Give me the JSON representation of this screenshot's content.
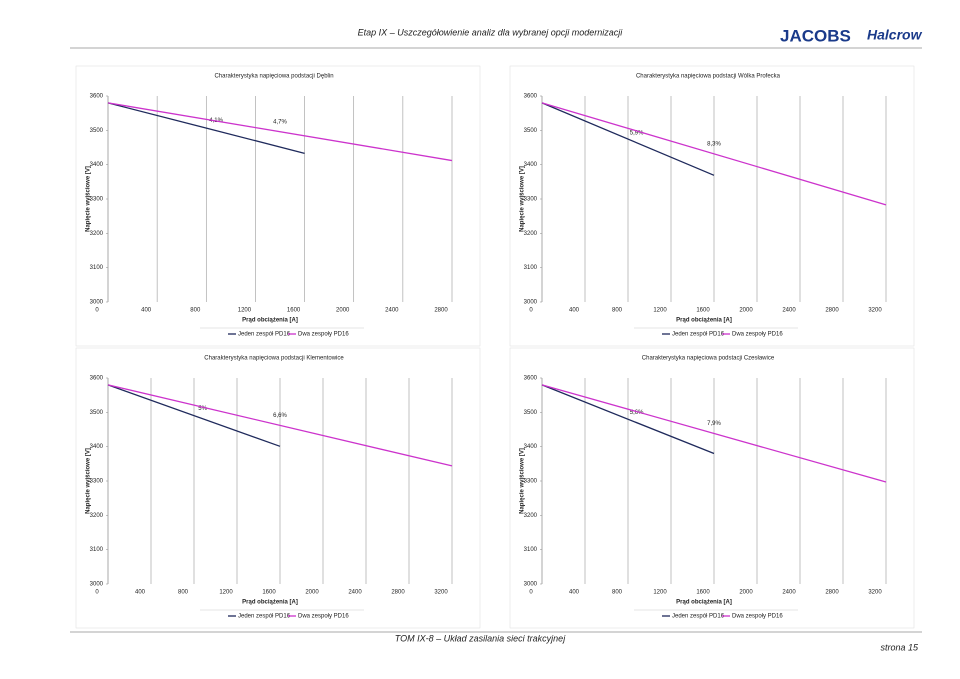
{
  "header": {
    "title": "Etap IX – Uszczegółowienie analiz dla wybranej opcji modernizacji",
    "logo_1": "JACOBS",
    "logo_2": "Halcrow"
  },
  "footer": {
    "text": "TOM IX-8 – Układ zasilania sieci trakcyjnej",
    "page": "strona 15"
  },
  "chart_data": [
    {
      "type": "line",
      "title": "Charakterystyka napięciowa podstacji Dęblin",
      "x_label": "Prąd obciążenia [A]",
      "y_label": "Napięcie wyjściowe [V]",
      "xlim": [
        0,
        2800
      ],
      "xticks": [
        0,
        400,
        800,
        1200,
        1600,
        2000,
        2400,
        2800
      ],
      "ylim": [
        3000,
        3600
      ],
      "yticks": [
        3000,
        3100,
        3200,
        3300,
        3400,
        3500,
        3600
      ],
      "grid": true,
      "series": [
        {
          "name": "Jeden zespół PD16",
          "color": "#1f2a5c",
          "x": [
            0,
            1600
          ],
          "values": [
            3580,
            3433
          ],
          "annotation": "4,1%"
        },
        {
          "name": "Dwa zespoły PD16",
          "color": "#cc33cc",
          "x": [
            0,
            2800
          ],
          "values": [
            3580,
            3412
          ],
          "annotation": "4,7%"
        }
      ]
    },
    {
      "type": "line",
      "title": "Charakterystyka napięciowa podstacji Wólka Profecka",
      "x_label": "Prąd obciążenia [A]",
      "y_label": "Napięcie wyjściowe [V]",
      "xlim": [
        0,
        3200
      ],
      "xticks": [
        0,
        400,
        800,
        1200,
        1600,
        2000,
        2400,
        2800,
        3200
      ],
      "ylim": [
        3000,
        3600
      ],
      "yticks": [
        3000,
        3100,
        3200,
        3300,
        3400,
        3500,
        3600
      ],
      "grid": true,
      "series": [
        {
          "name": "Jeden zespół PD16",
          "color": "#1f2a5c",
          "x": [
            0,
            1600
          ],
          "values": [
            3580,
            3369
          ],
          "annotation": "5,9%"
        },
        {
          "name": "Dwa zespoły PD16",
          "color": "#cc33cc",
          "x": [
            0,
            3200
          ],
          "values": [
            3580,
            3283
          ],
          "annotation": "8,3%"
        }
      ]
    },
    {
      "type": "line",
      "title": "Charakterystyka napięciowa podstacji Klementowice",
      "x_label": "Prąd obciążenia [A]",
      "y_label": "Napięcie wyjściowe [V]",
      "xlim": [
        0,
        3200
      ],
      "xticks": [
        0,
        400,
        800,
        1200,
        1600,
        2000,
        2400,
        2800,
        3200
      ],
      "ylim": [
        3000,
        3600
      ],
      "yticks": [
        3000,
        3100,
        3200,
        3300,
        3400,
        3500,
        3600
      ],
      "grid": true,
      "series": [
        {
          "name": "Jeden zespół PD16",
          "color": "#1f2a5c",
          "x": [
            0,
            1600
          ],
          "values": [
            3580,
            3401
          ],
          "annotation": "5%"
        },
        {
          "name": "Dwa zespoły PD16",
          "color": "#cc33cc",
          "x": [
            0,
            3200
          ],
          "values": [
            3580,
            3344
          ],
          "annotation": "6,6%"
        }
      ]
    },
    {
      "type": "line",
      "title": "Charakterystyka napięciowa podstacji Czesławice",
      "x_label": "Prąd obciążenia [A]",
      "y_label": "Napięcie wyjściowe [V]",
      "xlim": [
        0,
        3200
      ],
      "xticks": [
        0,
        400,
        800,
        1200,
        1600,
        2000,
        2400,
        2800,
        3200
      ],
      "ylim": [
        3000,
        3600
      ],
      "yticks": [
        3000,
        3100,
        3200,
        3300,
        3400,
        3500,
        3600
      ],
      "grid": true,
      "series": [
        {
          "name": "Jeden zespół PD16",
          "color": "#1f2a5c",
          "x": [
            0,
            1600
          ],
          "values": [
            3580,
            3380
          ],
          "annotation": "5,6%"
        },
        {
          "name": "Dwa zespoły PD16",
          "color": "#cc33cc",
          "x": [
            0,
            3200
          ],
          "values": [
            3580,
            3297
          ],
          "annotation": "7,9%"
        }
      ]
    }
  ]
}
